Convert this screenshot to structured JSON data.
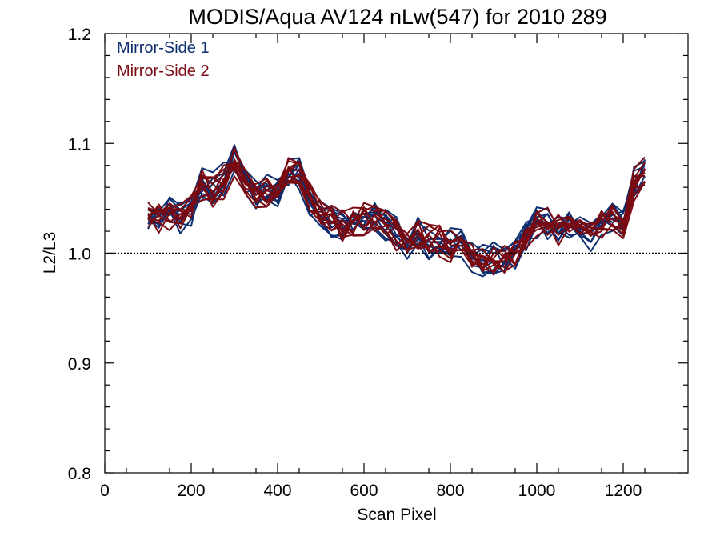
{
  "chart_data": {
    "type": "line",
    "title": "MODIS/Aqua AV124 nLw(547) for 2010 289",
    "xlabel": "Scan Pixel",
    "ylabel": "L2/L3",
    "xlim": [
      0,
      1350
    ],
    "ylim": [
      0.8,
      1.2
    ],
    "xticks": [
      0,
      200,
      400,
      600,
      800,
      1000,
      1200
    ],
    "xtick_labels": [
      "0",
      "200",
      "400",
      "600",
      "800",
      "1000",
      "1200"
    ],
    "yticks": [
      0.8,
      0.9,
      1.0,
      1.1,
      1.2
    ],
    "ytick_labels": [
      "0.8",
      "0.9",
      "1.0",
      "1.1",
      "1.2"
    ],
    "reference_line": {
      "y": 1.0,
      "style": "dotted"
    },
    "legend_placement": "top-left",
    "grid": false,
    "x": [
      100,
      125,
      150,
      175,
      200,
      225,
      250,
      275,
      300,
      325,
      350,
      375,
      400,
      425,
      450,
      475,
      500,
      525,
      550,
      575,
      600,
      625,
      650,
      675,
      700,
      725,
      750,
      775,
      800,
      825,
      850,
      875,
      900,
      925,
      950,
      975,
      1000,
      1025,
      1050,
      1075,
      1100,
      1125,
      1150,
      1175,
      1200,
      1225,
      1250
    ],
    "mean_profile": [
      1.035,
      1.033,
      1.036,
      1.033,
      1.04,
      1.062,
      1.057,
      1.066,
      1.085,
      1.068,
      1.055,
      1.057,
      1.059,
      1.072,
      1.073,
      1.05,
      1.038,
      1.03,
      1.026,
      1.029,
      1.032,
      1.034,
      1.026,
      1.018,
      1.008,
      1.016,
      1.01,
      1.014,
      1.008,
      1.011,
      0.995,
      0.993,
      0.995,
      0.993,
      1.0,
      1.013,
      1.026,
      1.028,
      1.023,
      1.026,
      1.022,
      1.018,
      1.03,
      1.032,
      1.028,
      1.062,
      1.078
    ],
    "series": [
      {
        "name": "Mirror-Side 1",
        "color": "#0d2e6e",
        "line_count": 10
      },
      {
        "name": "Mirror-Side 2",
        "color": "#7a0a12",
        "line_count": 10
      }
    ]
  }
}
